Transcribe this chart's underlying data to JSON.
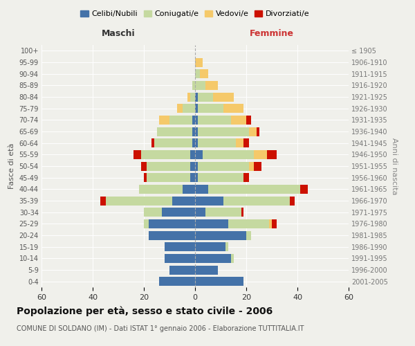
{
  "age_groups": [
    "0-4",
    "5-9",
    "10-14",
    "15-19",
    "20-24",
    "25-29",
    "30-34",
    "35-39",
    "40-44",
    "45-49",
    "50-54",
    "55-59",
    "60-64",
    "65-69",
    "70-74",
    "75-79",
    "80-84",
    "85-89",
    "90-94",
    "95-99",
    "100+"
  ],
  "birth_years": [
    "2001-2005",
    "1996-2000",
    "1991-1995",
    "1986-1990",
    "1981-1985",
    "1976-1980",
    "1971-1975",
    "1966-1970",
    "1961-1965",
    "1956-1960",
    "1951-1955",
    "1946-1950",
    "1941-1945",
    "1936-1940",
    "1931-1935",
    "1926-1930",
    "1921-1925",
    "1916-1920",
    "1911-1915",
    "1906-1910",
    "≤ 1905"
  ],
  "maschi": {
    "celibi": [
      14,
      10,
      12,
      12,
      18,
      18,
      13,
      9,
      5,
      2,
      2,
      2,
      1,
      1,
      1,
      0,
      0,
      0,
      0,
      0,
      0
    ],
    "coniugati": [
      0,
      0,
      0,
      0,
      0,
      2,
      7,
      26,
      17,
      17,
      17,
      19,
      15,
      14,
      9,
      5,
      2,
      1,
      0,
      0,
      0
    ],
    "vedovi": [
      0,
      0,
      0,
      0,
      0,
      0,
      0,
      0,
      0,
      0,
      0,
      0,
      0,
      0,
      4,
      2,
      1,
      0,
      0,
      0,
      0
    ],
    "divorziati": [
      0,
      0,
      0,
      0,
      0,
      0,
      0,
      2,
      0,
      1,
      2,
      3,
      1,
      0,
      0,
      0,
      0,
      0,
      0,
      0,
      0
    ]
  },
  "femmine": {
    "nubili": [
      19,
      9,
      14,
      12,
      20,
      13,
      4,
      11,
      5,
      1,
      1,
      3,
      1,
      1,
      1,
      1,
      1,
      0,
      0,
      0,
      0
    ],
    "coniugate": [
      0,
      0,
      1,
      1,
      2,
      16,
      14,
      26,
      36,
      18,
      20,
      20,
      15,
      20,
      13,
      10,
      6,
      4,
      2,
      0,
      0
    ],
    "vedove": [
      0,
      0,
      0,
      0,
      0,
      1,
      0,
      0,
      0,
      0,
      2,
      5,
      3,
      3,
      6,
      8,
      8,
      5,
      3,
      3,
      0
    ],
    "divorziate": [
      0,
      0,
      0,
      0,
      0,
      2,
      1,
      2,
      3,
      2,
      3,
      4,
      2,
      1,
      2,
      0,
      0,
      0,
      0,
      0,
      0
    ]
  },
  "colors": {
    "celibi": "#4472a8",
    "coniugati": "#c5d9a0",
    "vedovi": "#f5c96a",
    "divorziati": "#cc1100"
  },
  "legend_labels": [
    "Celibi/Nubili",
    "Coniugati/e",
    "Vedovi/e",
    "Divorziati/e"
  ],
  "title": "Popolazione per età, sesso e stato civile - 2006",
  "subtitle": "COMUNE DI SOLDANO (IM) - Dati ISTAT 1° gennaio 2006 - Elaborazione TUTTITALIA.IT",
  "xlabel_left": "Maschi",
  "xlabel_right": "Femmine",
  "ylabel_left": "Fasce di età",
  "ylabel_right": "Anni di nascita",
  "xlim": 60,
  "background_color": "#f0f0eb"
}
